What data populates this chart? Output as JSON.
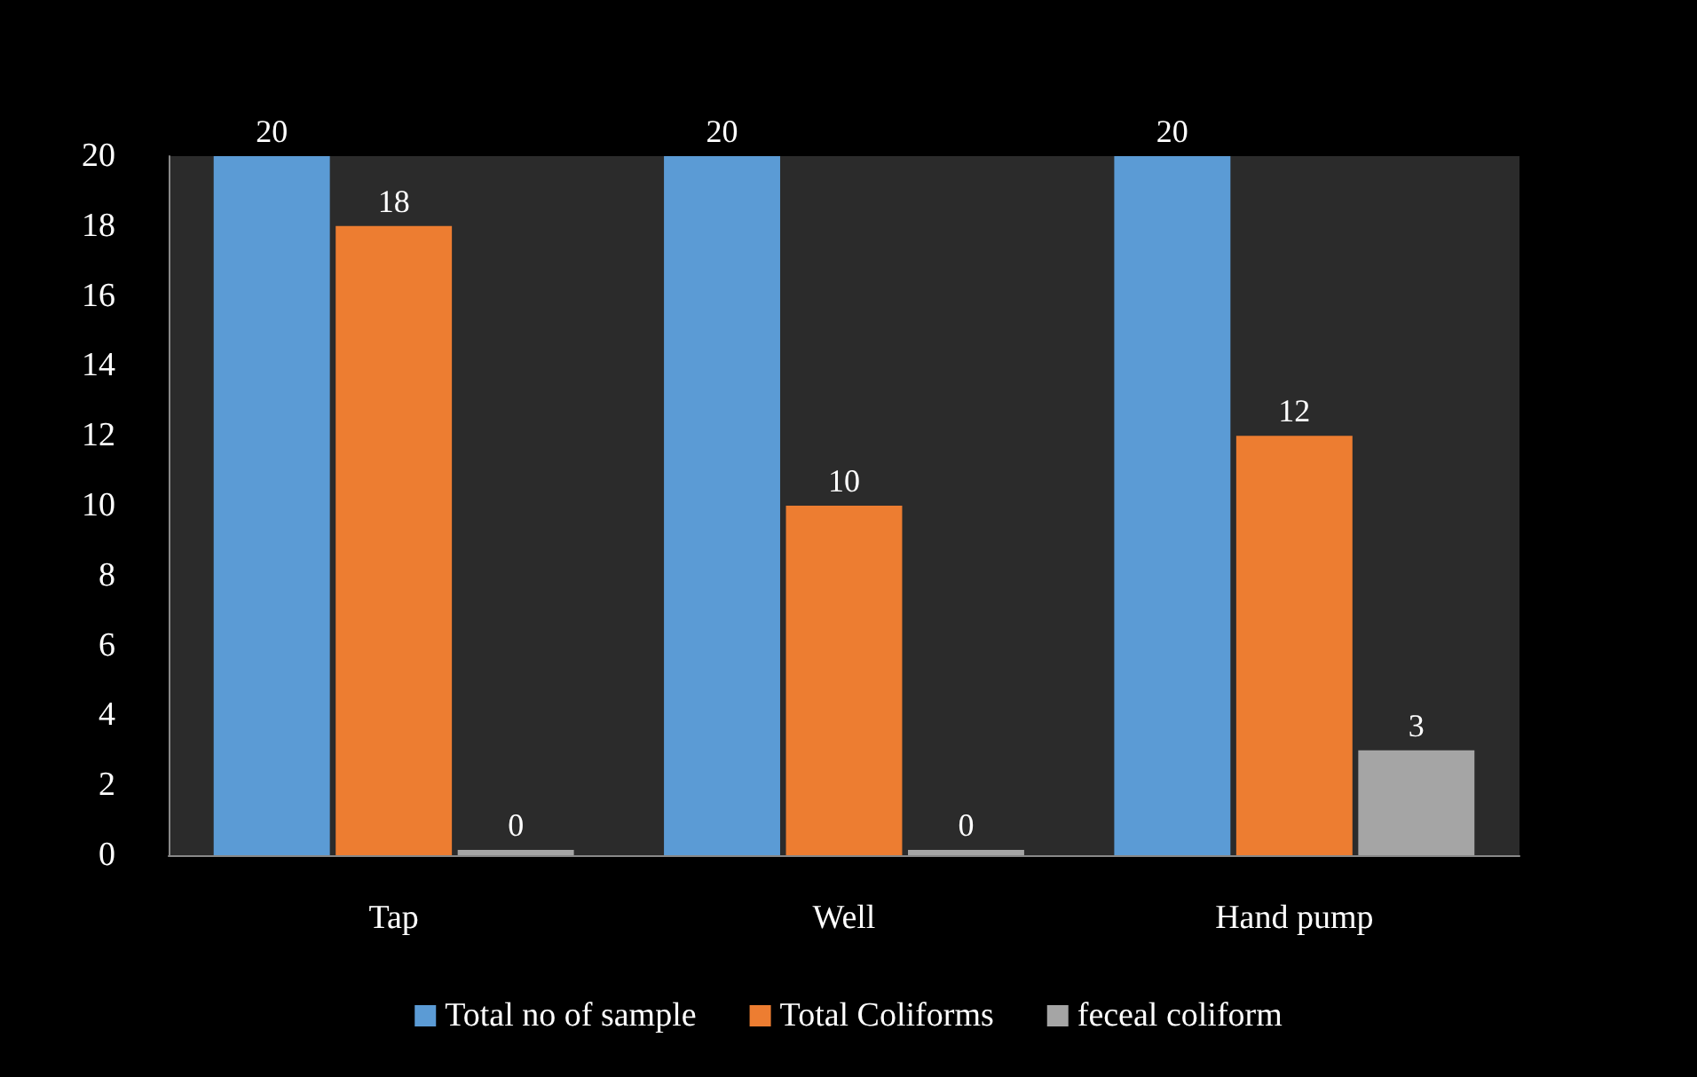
{
  "chart_data": {
    "type": "bar",
    "categories": [
      "Tap",
      "Well",
      "Hand pump"
    ],
    "series": [
      {
        "name": "Total no of sample",
        "color": "#5b9bd5",
        "values": [
          20,
          20,
          20
        ]
      },
      {
        "name": "Total Coliforms",
        "color": "#ed7d31",
        "values": [
          18,
          10,
          12
        ]
      },
      {
        "name": "feceal coliform",
        "color": "#a5a5a5",
        "values": [
          0,
          0,
          3
        ]
      }
    ],
    "ylim": [
      0,
      20
    ],
    "yticks": [
      0,
      2,
      4,
      6,
      8,
      10,
      12,
      14,
      16,
      18,
      20
    ],
    "grid": false,
    "legend": "bottom",
    "data_labels": true
  }
}
